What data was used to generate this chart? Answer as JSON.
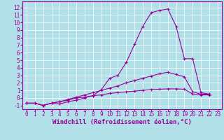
{
  "background_color": "#b2e0e8",
  "grid_color": "#ffffff",
  "line_color": "#990099",
  "marker": "+",
  "marker_size": 3,
  "xlabel": "Windchill (Refroidissement éolien,°C)",
  "tick_fontsize": 5.5,
  "xlabel_fontsize": 6.5,
  "xlim": [
    -0.5,
    23.5
  ],
  "ylim": [
    -1.5,
    12.8
  ],
  "yticks": [
    -1,
    0,
    1,
    2,
    3,
    4,
    5,
    6,
    7,
    8,
    9,
    10,
    11,
    12
  ],
  "xticks": [
    0,
    1,
    2,
    3,
    4,
    5,
    6,
    7,
    8,
    9,
    10,
    11,
    12,
    13,
    14,
    15,
    16,
    17,
    18,
    19,
    20,
    21,
    22,
    23
  ],
  "curves": [
    {
      "x": [
        0,
        1,
        2,
        3,
        4,
        5,
        6,
        7,
        8,
        9,
        10,
        11,
        12,
        13,
        14,
        15,
        16,
        17,
        18,
        19,
        20,
        21,
        22
      ],
      "y": [
        -0.7,
        -0.7,
        -1.0,
        -0.7,
        -0.8,
        -0.5,
        -0.3,
        0.0,
        0.3,
        1.1,
        2.6,
        3.0,
        4.7,
        7.1,
        9.5,
        11.3,
        11.6,
        11.8,
        9.5,
        5.2,
        5.2,
        0.7,
        0.5
      ]
    },
    {
      "x": [
        0,
        1,
        2,
        3,
        4,
        5,
        6,
        7,
        8,
        9,
        10,
        11,
        12,
        13,
        14,
        15,
        16,
        17,
        18,
        19,
        20,
        21,
        22
      ],
      "y": [
        -0.7,
        -0.7,
        -1.0,
        -0.7,
        -0.5,
        -0.2,
        0.1,
        0.4,
        0.7,
        1.0,
        1.3,
        1.6,
        2.0,
        2.3,
        2.6,
        2.9,
        3.2,
        3.4,
        3.1,
        2.8,
        0.8,
        0.5,
        0.5
      ]
    },
    {
      "x": [
        0,
        1,
        2,
        3,
        4,
        5,
        6,
        7,
        8,
        9,
        10,
        11,
        12,
        13,
        14,
        15,
        16,
        17,
        18,
        19,
        20,
        21,
        22
      ],
      "y": [
        -0.7,
        -0.7,
        -1.0,
        -0.7,
        -0.5,
        -0.3,
        0.0,
        0.1,
        0.3,
        0.4,
        0.6,
        0.7,
        0.8,
        0.9,
        1.0,
        1.1,
        1.15,
        1.2,
        1.2,
        1.15,
        0.5,
        0.4,
        0.4
      ]
    }
  ]
}
